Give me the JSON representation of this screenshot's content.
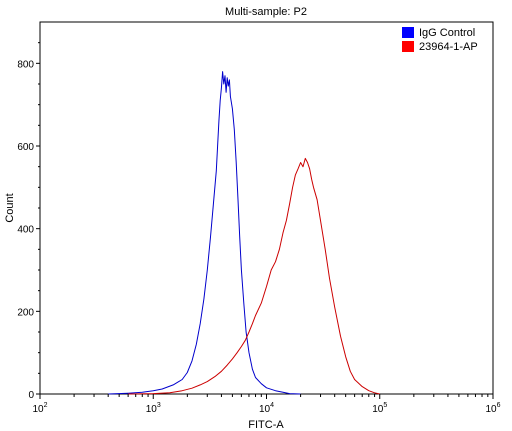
{
  "chart_data": {
    "type": "histogram-line",
    "title": "Multi-sample: P2",
    "xlabel": "FITC-A",
    "ylabel": "Count",
    "xscale": "log",
    "xlim": [
      100,
      1000000
    ],
    "ylim": [
      0,
      900
    ],
    "x_ticks": [
      {
        "value": 100,
        "base": "10",
        "exp": "2"
      },
      {
        "value": 1000,
        "base": "10",
        "exp": "3"
      },
      {
        "value": 10000,
        "base": "10",
        "exp": "4"
      },
      {
        "value": 100000,
        "base": "10",
        "exp": "5"
      },
      {
        "value": 1000000,
        "base": "10",
        "exp": "6"
      }
    ],
    "y_ticks": [
      0,
      200,
      400,
      600,
      800
    ],
    "legend_position": "top-right",
    "series": [
      {
        "name": "IgG Control",
        "color": "#0000cc",
        "legend_color": "#0000ff",
        "points": [
          [
            400,
            0
          ],
          [
            600,
            2
          ],
          [
            800,
            4
          ],
          [
            1000,
            8
          ],
          [
            1200,
            12
          ],
          [
            1500,
            22
          ],
          [
            1800,
            35
          ],
          [
            2000,
            52
          ],
          [
            2200,
            80
          ],
          [
            2400,
            120
          ],
          [
            2600,
            170
          ],
          [
            2800,
            230
          ],
          [
            3000,
            300
          ],
          [
            3200,
            380
          ],
          [
            3400,
            460
          ],
          [
            3600,
            540
          ],
          [
            3700,
            600
          ],
          [
            3800,
            660
          ],
          [
            3900,
            710
          ],
          [
            4000,
            740
          ],
          [
            4100,
            780
          ],
          [
            4200,
            750
          ],
          [
            4300,
            770
          ],
          [
            4400,
            730
          ],
          [
            4500,
            765
          ],
          [
            4600,
            745
          ],
          [
            4700,
            760
          ],
          [
            4800,
            720
          ],
          [
            5000,
            690
          ],
          [
            5200,
            640
          ],
          [
            5400,
            560
          ],
          [
            5600,
            470
          ],
          [
            5800,
            380
          ],
          [
            6000,
            300
          ],
          [
            6300,
            220
          ],
          [
            6600,
            150
          ],
          [
            7000,
            100
          ],
          [
            7500,
            60
          ],
          [
            8000,
            40
          ],
          [
            9000,
            25
          ],
          [
            10000,
            15
          ],
          [
            12000,
            8
          ],
          [
            14000,
            4
          ],
          [
            16000,
            1
          ],
          [
            20000,
            0
          ]
        ]
      },
      {
        "name": "23964-1-AP",
        "color": "#cc0000",
        "legend_color": "#ff0000",
        "points": [
          [
            600,
            0
          ],
          [
            1000,
            1
          ],
          [
            1400,
            3
          ],
          [
            1800,
            8
          ],
          [
            2200,
            14
          ],
          [
            2600,
            22
          ],
          [
            3000,
            30
          ],
          [
            3500,
            42
          ],
          [
            4000,
            55
          ],
          [
            4500,
            70
          ],
          [
            5000,
            85
          ],
          [
            5500,
            100
          ],
          [
            6000,
            115
          ],
          [
            6500,
            130
          ],
          [
            7000,
            150
          ],
          [
            7500,
            170
          ],
          [
            8000,
            190
          ],
          [
            9000,
            220
          ],
          [
            10000,
            260
          ],
          [
            11000,
            300
          ],
          [
            12000,
            320
          ],
          [
            13000,
            350
          ],
          [
            14000,
            390
          ],
          [
            15000,
            420
          ],
          [
            16000,
            460
          ],
          [
            17000,
            500
          ],
          [
            18000,
            530
          ],
          [
            19000,
            545
          ],
          [
            20000,
            560
          ],
          [
            21000,
            550
          ],
          [
            22000,
            570
          ],
          [
            23000,
            560
          ],
          [
            24000,
            545
          ],
          [
            25000,
            520
          ],
          [
            26000,
            500
          ],
          [
            28000,
            470
          ],
          [
            30000,
            420
          ],
          [
            33000,
            350
          ],
          [
            36000,
            280
          ],
          [
            40000,
            210
          ],
          [
            45000,
            140
          ],
          [
            50000,
            90
          ],
          [
            55000,
            55
          ],
          [
            60000,
            35
          ],
          [
            70000,
            18
          ],
          [
            80000,
            8
          ],
          [
            90000,
            3
          ],
          [
            100000,
            0
          ]
        ]
      }
    ]
  }
}
